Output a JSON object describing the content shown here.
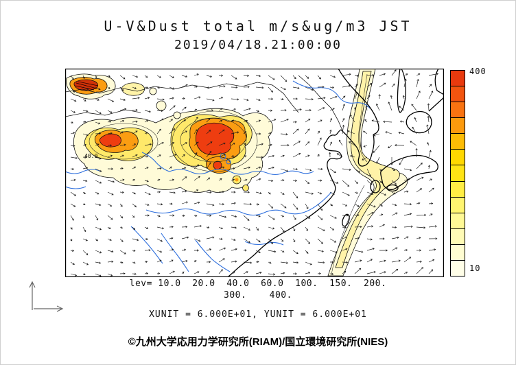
{
  "header": {
    "title": "U-V&Dust total m/s&ug/m3 JST",
    "datetime": "2019/04/18.21:00:00"
  },
  "colorbar": {
    "max_label": "400",
    "min_label": "10",
    "segments": [
      "#e93a0e",
      "#f2540f",
      "#f97311",
      "#fc9a0d",
      "#fdbc05",
      "#ffd800",
      "#ffe415",
      "#ffee45",
      "#fff570",
      "#fff996",
      "#fffbb6",
      "#fffdd2",
      "#fffee8"
    ]
  },
  "legend": {
    "lev_line1": "lev= 10.0  20.0  40.0  60.0  100.  150.  200.",
    "lev_line2": "300.    400.",
    "units_line": "XUNIT = 6.000E+01, YUNIT = 6.000E+01"
  },
  "map": {
    "contour_label": "40.0"
  },
  "footer": {
    "credit": "©九州大学応用力学研究所(RIAM)/国立環境研究所(NIES)"
  },
  "chart_data": {
    "type": "heatmap",
    "title": "U-V&Dust total m/s&ug/m3 JST",
    "valid_time": "2019/04/18.21:00:00",
    "variable": "Dust total concentration (ug/m3) with U-V wind vectors (m/s)",
    "contour_levels": [
      10.0,
      20.0,
      40.0,
      60.0,
      100.0,
      150.0,
      200.0,
      300.0,
      400.0
    ],
    "colorbar_range": [
      10,
      400
    ],
    "xunit": "6.000E+01",
    "yunit": "6.000E+01"
  }
}
